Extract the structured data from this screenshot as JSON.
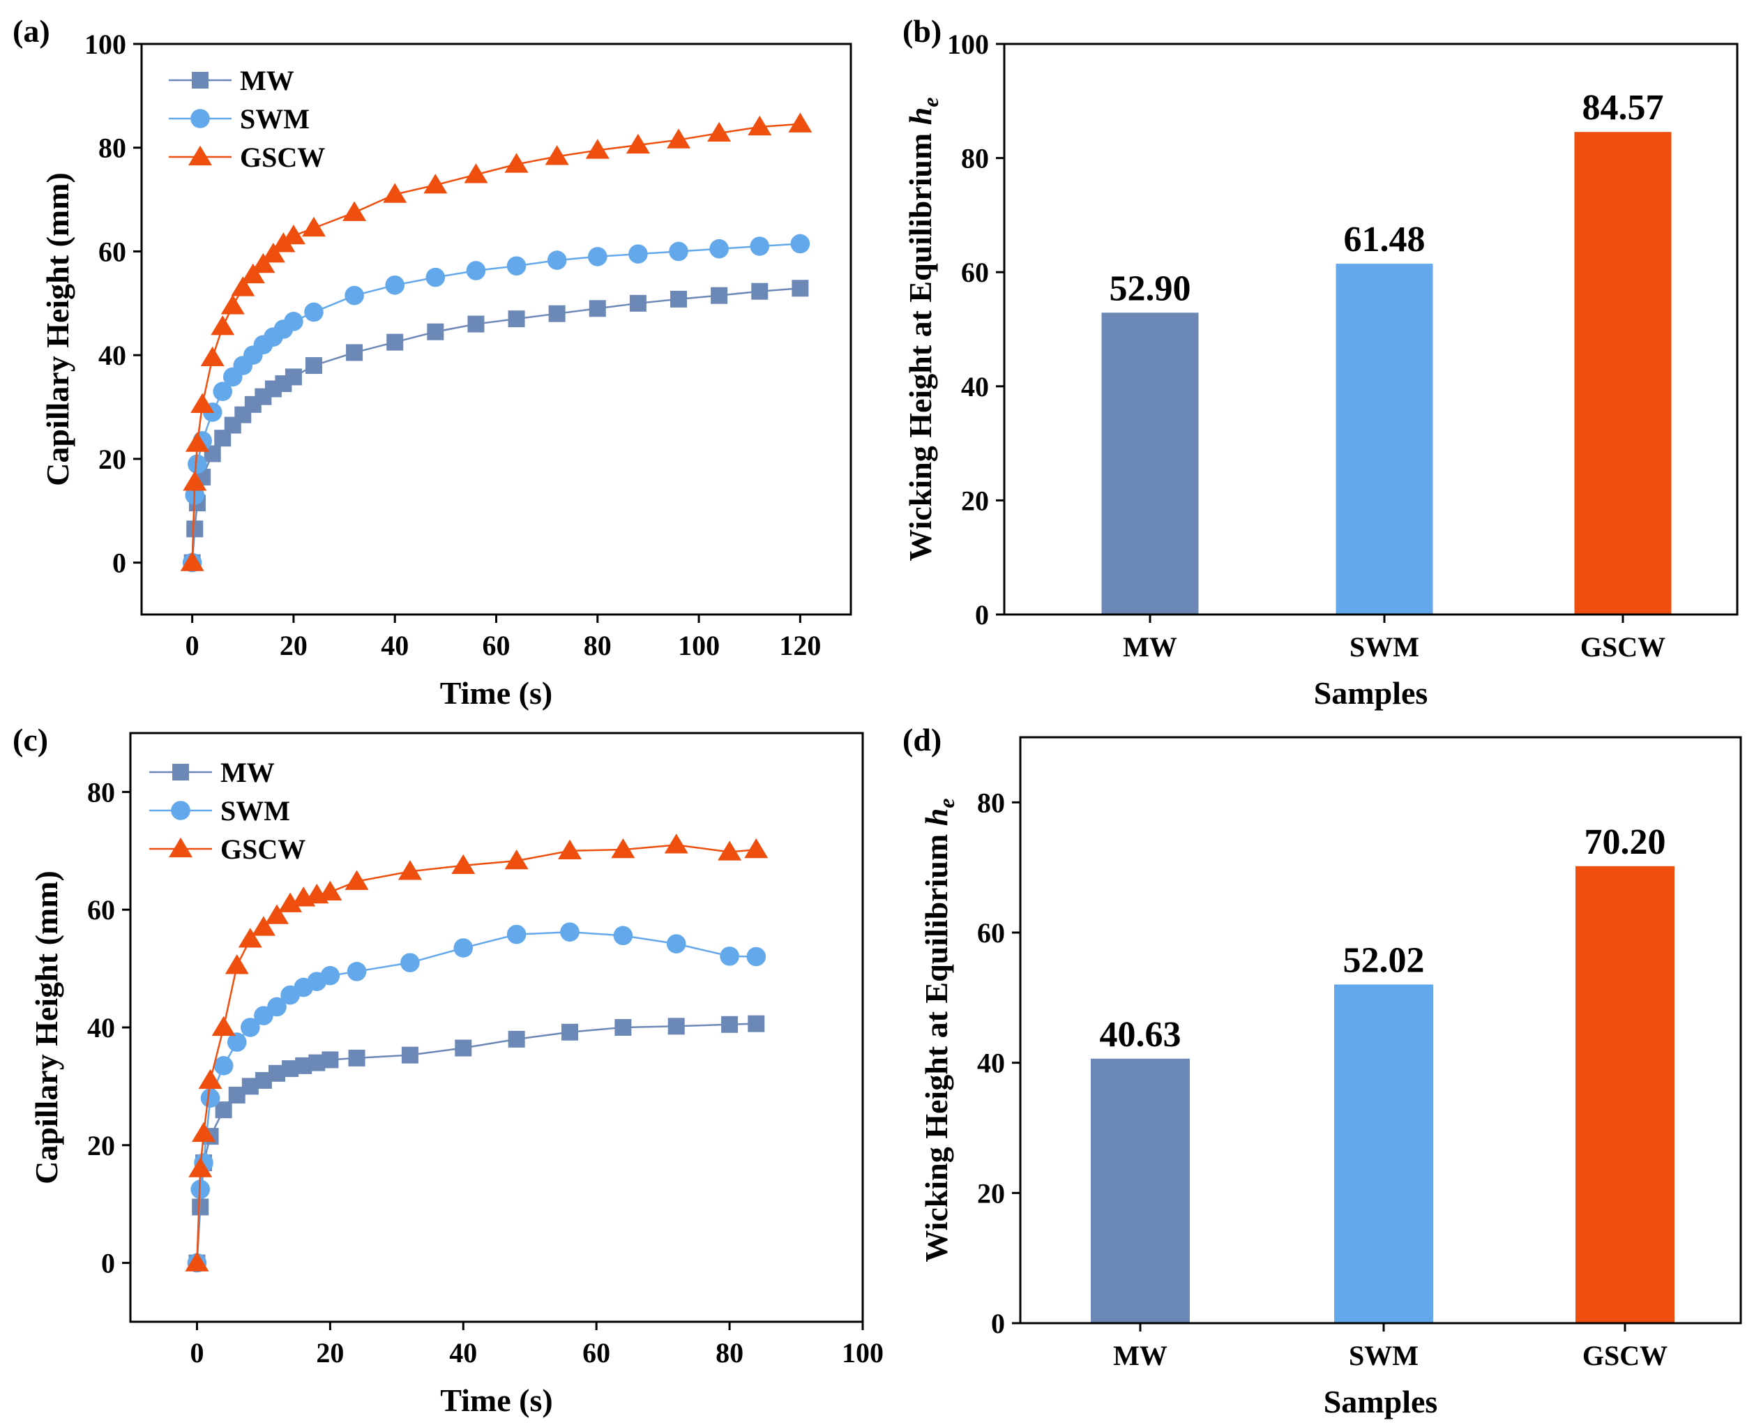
{
  "panels": {
    "a": {
      "label": "(a)"
    },
    "b": {
      "label": "(b)"
    },
    "c": {
      "label": "(c)"
    },
    "d": {
      "label": "(d)"
    }
  },
  "colors": {
    "MW": "#6b88b6",
    "SWM": "#62a8ea",
    "GSCW": "#ef4f0e"
  },
  "chart_data": [
    {
      "panel": "a",
      "type": "line",
      "title": "",
      "xlabel": "Time (s)",
      "ylabel": "Capillary Height (mm)",
      "xlim": [
        -10,
        130
      ],
      "ylim": [
        -10,
        100
      ],
      "xticks": [
        0,
        20,
        40,
        60,
        80,
        100,
        120
      ],
      "yticks": [
        0,
        20,
        40,
        60,
        80,
        100
      ],
      "legend": "top-left",
      "series": [
        {
          "name": "MW",
          "marker": "square",
          "x": [
            0,
            0.5,
            1,
            2,
            4,
            6,
            8,
            10,
            12,
            14,
            16,
            18,
            20,
            24,
            32,
            40,
            48,
            56,
            64,
            72,
            80,
            88,
            96,
            104,
            112,
            120
          ],
          "y": [
            0,
            6.5,
            11.5,
            16.5,
            21,
            24,
            26.5,
            28.5,
            30.5,
            32,
            33.5,
            34.5,
            35.8,
            38,
            40.5,
            42.5,
            44.5,
            46,
            47,
            48,
            49,
            50,
            50.8,
            51.5,
            52.3,
            52.9
          ]
        },
        {
          "name": "SWM",
          "marker": "circle",
          "x": [
            0,
            0.5,
            1,
            2,
            4,
            6,
            8,
            10,
            12,
            14,
            16,
            18,
            20,
            24,
            32,
            40,
            48,
            56,
            64,
            72,
            80,
            88,
            96,
            104,
            112,
            120
          ],
          "y": [
            0,
            13,
            19,
            23.5,
            29,
            33,
            35.8,
            38,
            40,
            42,
            43.5,
            45,
            46.5,
            48.3,
            51.5,
            53.5,
            55,
            56.3,
            57.2,
            58.3,
            59,
            59.5,
            60,
            60.5,
            61,
            61.48
          ]
        },
        {
          "name": "GSCW",
          "marker": "triangle",
          "x": [
            0,
            0.5,
            1,
            2,
            4,
            6,
            8,
            10,
            12,
            14,
            16,
            18,
            20,
            24,
            32,
            40,
            48,
            56,
            64,
            72,
            80,
            88,
            96,
            104,
            112,
            120
          ],
          "y": [
            0,
            15.5,
            23,
            30.5,
            39.5,
            45.5,
            49.5,
            53,
            55.5,
            57.5,
            59.5,
            61.5,
            63,
            64.5,
            67.5,
            71,
            72.8,
            74.8,
            76.8,
            78.3,
            79.5,
            80.5,
            81.5,
            82.8,
            84,
            84.57
          ]
        }
      ]
    },
    {
      "panel": "b",
      "type": "bar",
      "title": "",
      "xlabel": "Samples",
      "ylabel": "Wicking Height at Equilibrium",
      "ylabel_italic": "h",
      "ylabel_sub": "e",
      "categories": [
        "MW",
        "SWM",
        "GSCW"
      ],
      "values": [
        52.9,
        61.48,
        84.57
      ],
      "value_labels": [
        "52.90",
        "61.48",
        "84.57"
      ],
      "ylim": [
        0,
        100
      ],
      "yticks": [
        0,
        20,
        40,
        60,
        80,
        100
      ]
    },
    {
      "panel": "c",
      "type": "line",
      "title": "",
      "xlabel": "Time (s)",
      "ylabel": "Capillary Height (mm)",
      "xlim": [
        -10,
        100
      ],
      "ylim": [
        -10,
        90
      ],
      "xticks": [
        0,
        20,
        40,
        60,
        80,
        100
      ],
      "yticks": [
        0,
        20,
        40,
        60,
        80
      ],
      "legend": "top-left",
      "series": [
        {
          "name": "MW",
          "marker": "square",
          "x": [
            0,
            0.5,
            1,
            2,
            4,
            6,
            8,
            10,
            12,
            14,
            16,
            18,
            20,
            24,
            32,
            40,
            48,
            56,
            64,
            72,
            80,
            84
          ],
          "y": [
            0,
            9.5,
            17,
            21.5,
            26,
            28.5,
            30,
            31,
            32.2,
            33,
            33.5,
            34,
            34.5,
            34.8,
            35.3,
            36.5,
            38,
            39.2,
            40,
            40.2,
            40.5,
            40.63
          ]
        },
        {
          "name": "SWM",
          "marker": "circle",
          "x": [
            0,
            0.5,
            1,
            2,
            4,
            6,
            8,
            10,
            12,
            14,
            16,
            18,
            20,
            24,
            32,
            40,
            48,
            56,
            64,
            72,
            80,
            84
          ],
          "y": [
            0,
            12.5,
            17,
            28,
            33.5,
            37.5,
            40,
            42,
            43.5,
            45.5,
            46.8,
            47.8,
            48.8,
            49.5,
            51,
            53.5,
            55.8,
            56.2,
            55.6,
            54.2,
            52.1,
            52.02
          ]
        },
        {
          "name": "GSCW",
          "marker": "triangle",
          "x": [
            0,
            0.5,
            1,
            2,
            4,
            6,
            8,
            10,
            12,
            14,
            16,
            18,
            20,
            24,
            32,
            40,
            48,
            56,
            64,
            72,
            80,
            84
          ],
          "y": [
            0,
            16,
            22,
            31,
            40,
            50.5,
            55,
            57,
            59,
            61,
            62,
            62.5,
            63,
            64.8,
            66.5,
            67.5,
            68.3,
            70,
            70.2,
            71,
            69.8,
            70.2
          ]
        }
      ]
    },
    {
      "panel": "d",
      "type": "bar",
      "title": "",
      "xlabel": "Samples",
      "ylabel": "Wicking Height at Equilibrium",
      "ylabel_italic": "h",
      "ylabel_sub": "e",
      "categories": [
        "MW",
        "SWM",
        "GSCW"
      ],
      "values": [
        40.63,
        52.02,
        70.2
      ],
      "value_labels": [
        "40.63",
        "52.02",
        "70.20"
      ],
      "ylim": [
        0,
        90
      ],
      "yticks": [
        0,
        20,
        40,
        60,
        80
      ]
    }
  ]
}
